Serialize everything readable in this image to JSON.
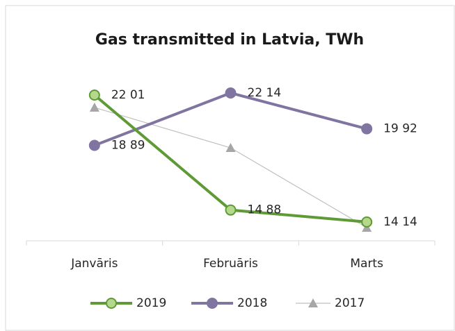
{
  "chart_data": {
    "type": "line",
    "title": "Gas transmitted in Latvia, TWh",
    "categories": [
      "Janvāris",
      "Februāris",
      "Marts"
    ],
    "series": [
      {
        "name": "2019",
        "color": "#5e9a35",
        "marker_fill": "#b5d88c",
        "marker": "circle",
        "line_width": 4,
        "values": [
          22.01,
          14.88,
          14.14
        ],
        "value_labels": [
          "22 01",
          "14 88",
          "14 14"
        ]
      },
      {
        "name": "2018",
        "color": "#8074a0",
        "marker_fill": "#8074a0",
        "marker": "circle",
        "line_width": 4,
        "values": [
          18.89,
          22.14,
          19.92
        ],
        "value_labels": [
          "18 89",
          "22 14",
          "19 92"
        ]
      },
      {
        "name": "2017",
        "color": "#bfbfbf",
        "marker_fill": "#a6a6a6",
        "marker": "triangle",
        "line_width": 1.2,
        "values": [
          21.24,
          18.74,
          13.79
        ]
      }
    ],
    "legend": "bottom"
  }
}
